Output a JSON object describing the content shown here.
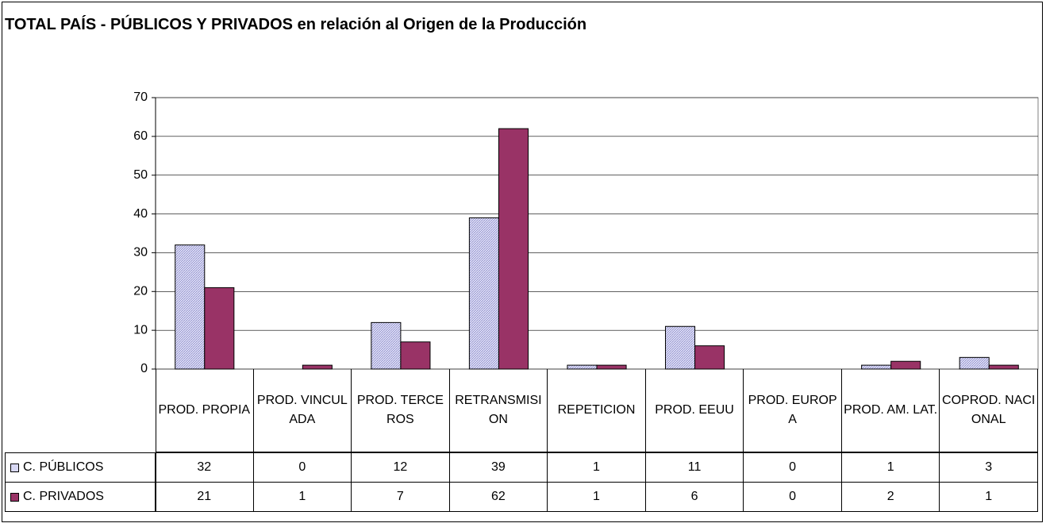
{
  "chart_data": {
    "type": "bar",
    "title": "TOTAL PAÍS - PÚBLICOS Y PRIVADOS en relación al Origen de la Producción",
    "categories": [
      "PROD. PROPIA",
      "PROD. VINCULADA",
      "PROD. TERCEROS",
      "RETRANSMISION",
      "REPETICION",
      "PROD. EEUU",
      "PROD. EUROPA",
      "PROD. AM. LAT.",
      "COPROD. NACIONAL"
    ],
    "series": [
      {
        "name": "C. PÚBLICOS",
        "color": "#c8c8f0",
        "values": [
          32,
          0,
          12,
          39,
          1,
          11,
          0,
          1,
          3
        ]
      },
      {
        "name": "C. PRIVADOS",
        "color": "#993366",
        "values": [
          21,
          1,
          7,
          62,
          1,
          6,
          0,
          2,
          1
        ]
      }
    ],
    "ylim": [
      0,
      70
    ],
    "yticks": [
      0,
      10,
      20,
      30,
      40,
      50,
      60,
      70
    ],
    "grid": true
  }
}
